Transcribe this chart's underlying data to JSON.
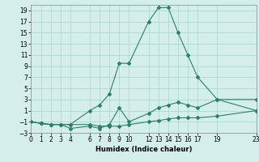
{
  "xlabel": "Humidex (Indice chaleur)",
  "bg_color": "#d4eeea",
  "grid_color": "#aed8d2",
  "line_color": "#2e7d6e",
  "xlim": [
    0,
    23
  ],
  "ylim": [
    -3,
    20
  ],
  "xticks": [
    0,
    1,
    2,
    3,
    4,
    6,
    7,
    8,
    9,
    10,
    12,
    13,
    14,
    15,
    16,
    17,
    19,
    23
  ],
  "yticks": [
    -3,
    -1,
    1,
    3,
    5,
    7,
    9,
    11,
    13,
    15,
    17,
    19
  ],
  "line1_x": [
    0,
    1,
    2,
    3,
    4,
    6,
    7,
    8,
    9,
    10,
    12,
    13,
    14,
    15,
    16,
    17,
    19,
    23
  ],
  "line1_y": [
    -1,
    -1.3,
    -1.5,
    -1.5,
    -1.5,
    -1.5,
    -1.8,
    -1.8,
    -1.8,
    -1.5,
    -1,
    -0.8,
    -0.5,
    -0.3,
    -0.3,
    -0.3,
    0.0,
    1.0
  ],
  "line2_x": [
    0,
    1,
    2,
    3,
    4,
    6,
    7,
    8,
    9,
    10,
    12,
    13,
    14,
    15,
    16,
    17,
    19,
    23
  ],
  "line2_y": [
    -1,
    -1.3,
    -1.5,
    -1.5,
    -2.2,
    -1.8,
    -2.2,
    -1.5,
    1.5,
    -1.0,
    0.5,
    1.5,
    2.0,
    2.5,
    2.0,
    1.5,
    3.0,
    3.0
  ],
  "line3_x": [
    0,
    1,
    2,
    3,
    4,
    6,
    7,
    8,
    9,
    10,
    12,
    13,
    14,
    15,
    16,
    17,
    19,
    23
  ],
  "line3_y": [
    -1,
    -1.3,
    -1.5,
    -1.5,
    -1.5,
    1.0,
    2.0,
    4.0,
    9.5,
    9.5,
    17.0,
    19.5,
    19.5,
    15.0,
    11.0,
    7.0,
    3.0,
    1.0
  ]
}
